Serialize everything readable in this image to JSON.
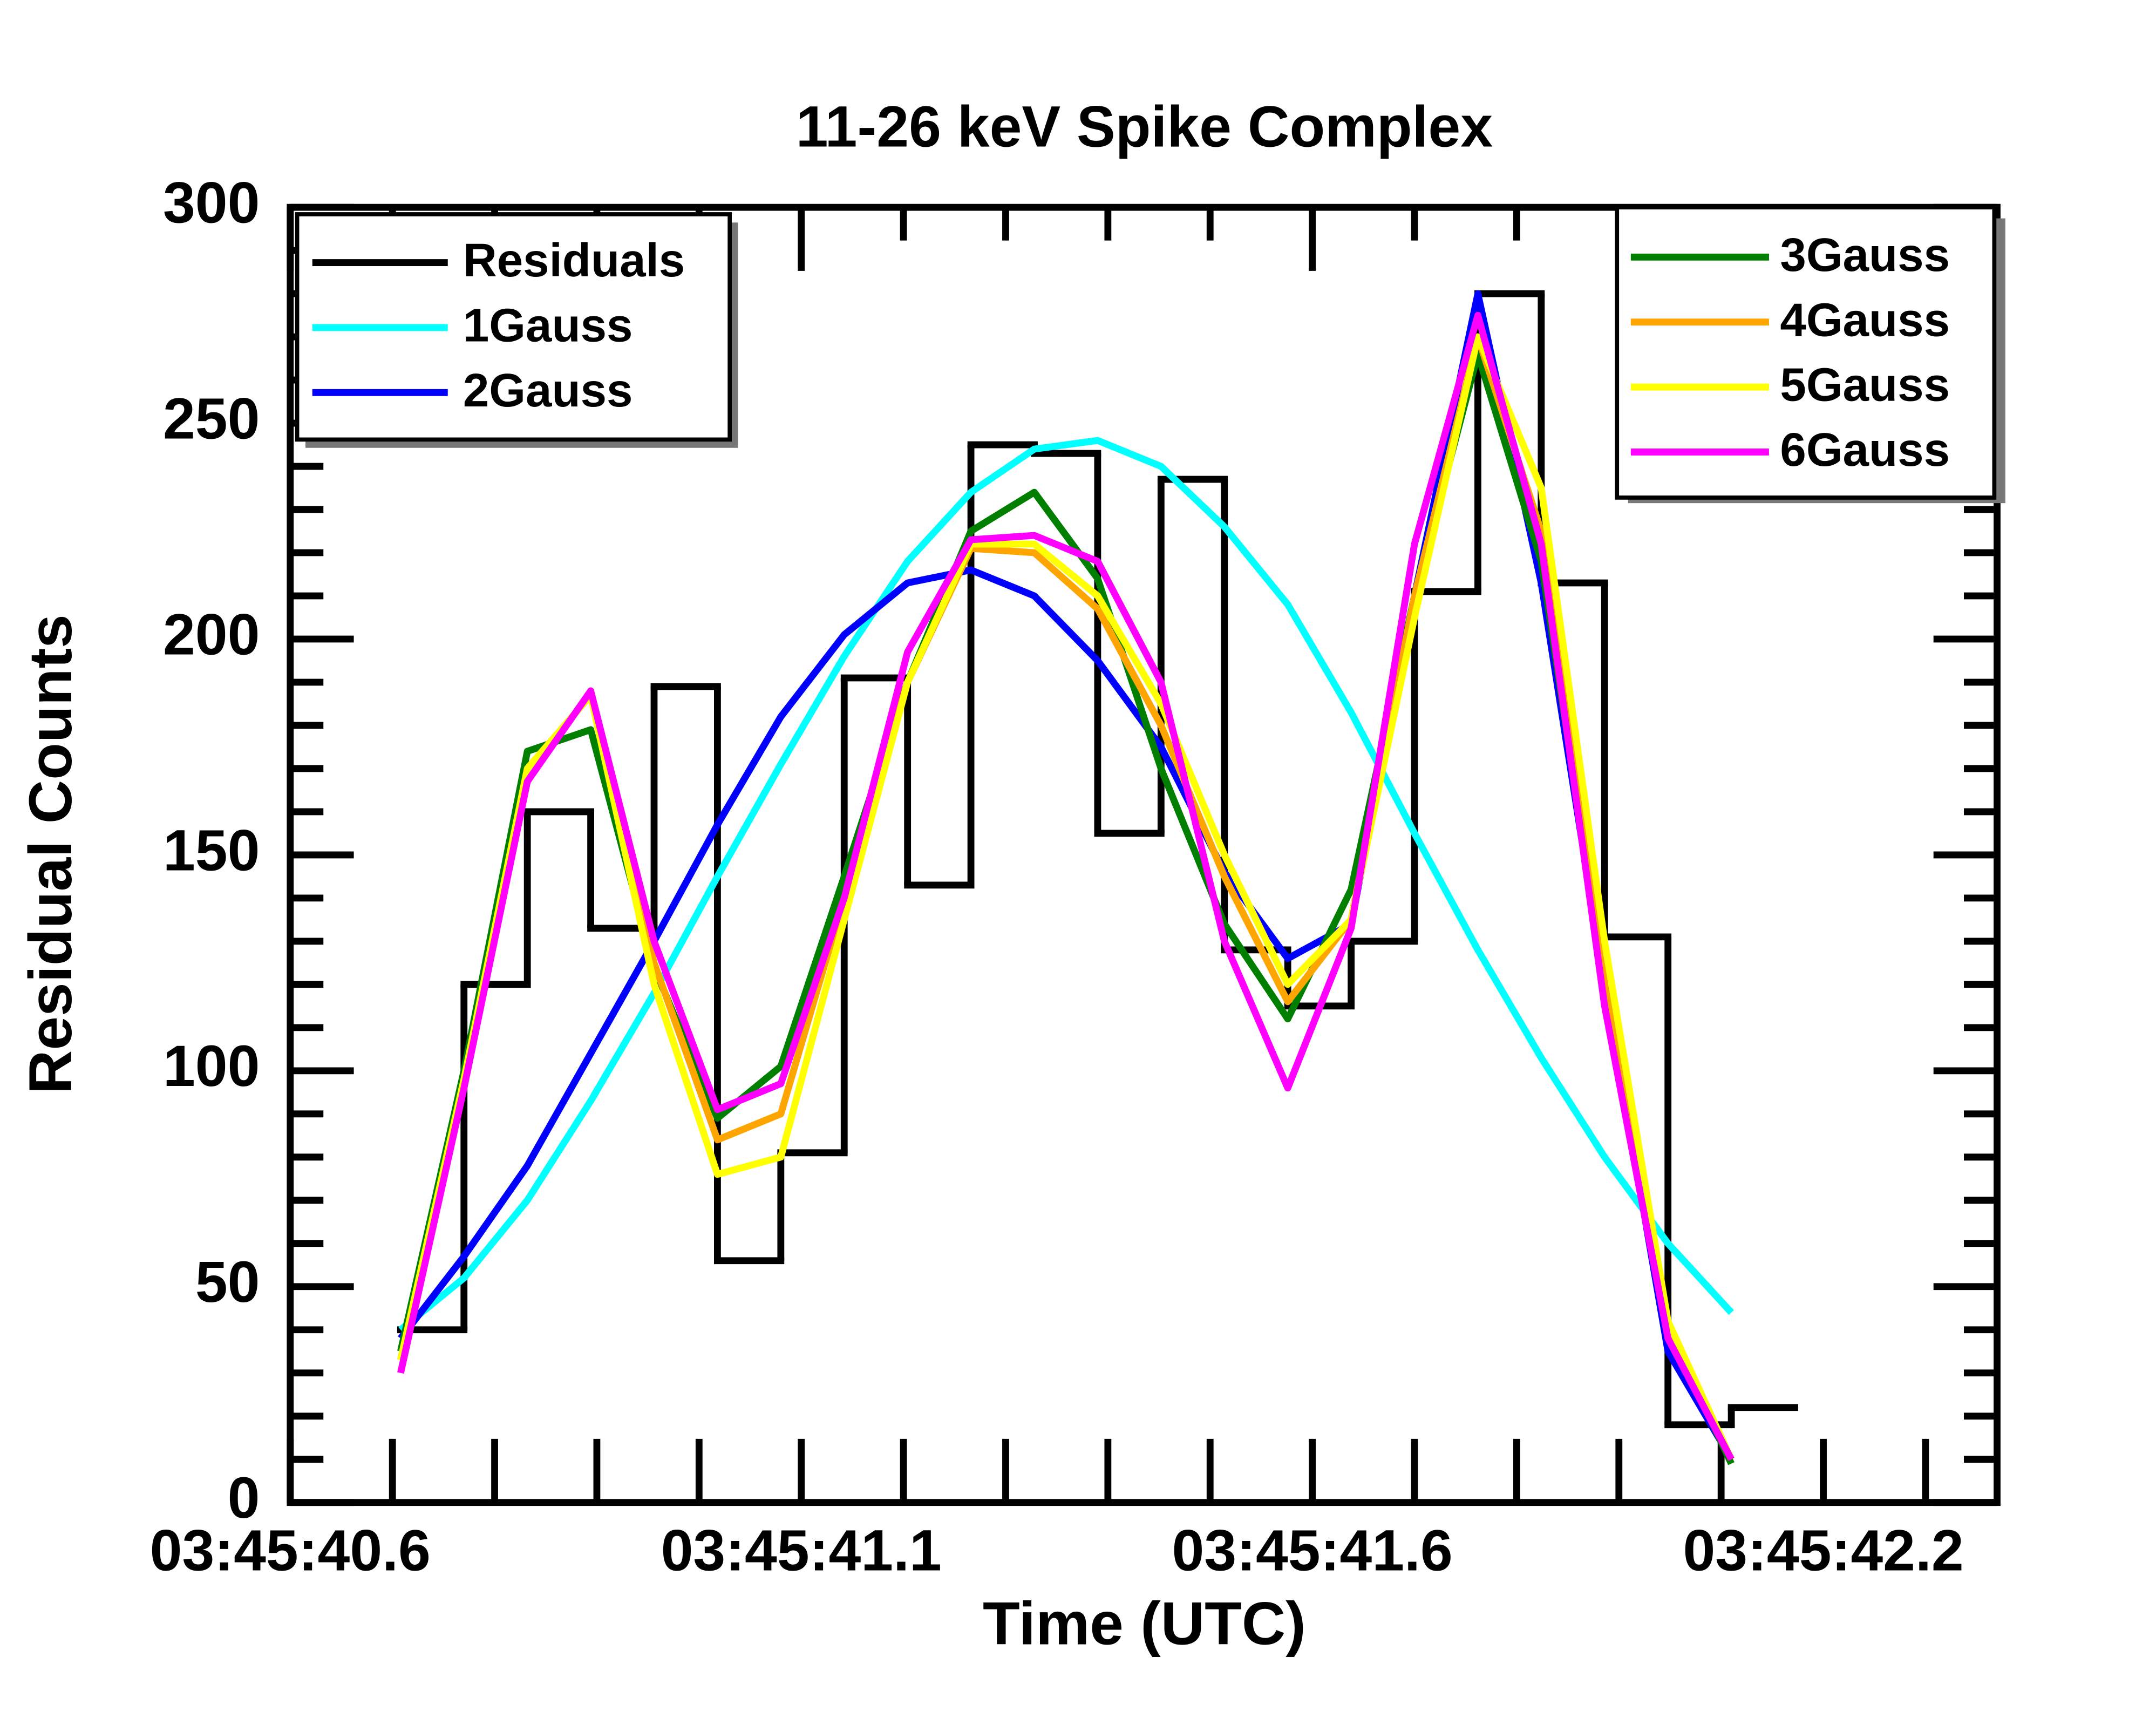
{
  "chart_data": {
    "type": "line",
    "title": "11-26 keV Spike Complex",
    "x_label": "Time (UTC)",
    "y_label": "Residual Counts",
    "xlim": [
      40.65,
      42.32
    ],
    "ylim": [
      0,
      300
    ],
    "xticks": [
      {
        "value": 40.65,
        "label": "03:45:40.6"
      },
      {
        "value": 41.15,
        "label": "03:45:41.1"
      },
      {
        "value": 41.65,
        "label": "03:45:41.6"
      },
      {
        "value": 42.15,
        "label": "03:45:42.2"
      }
    ],
    "xminorticks": [
      40.75,
      40.85,
      40.95,
      41.05,
      41.25,
      41.35,
      41.45,
      41.55,
      41.75,
      41.85,
      41.95,
      42.05,
      42.25
    ],
    "yticks": [
      0,
      50,
      100,
      150,
      200,
      250,
      300
    ],
    "yminorticks": [
      10,
      20,
      30,
      40,
      60,
      70,
      80,
      90,
      110,
      120,
      130,
      140,
      160,
      170,
      180,
      190,
      210,
      220,
      230,
      240,
      260,
      270,
      280,
      290
    ],
    "residuals": {
      "name": "Residuals",
      "color": "#000000",
      "bins": [
        40.758,
        40.82,
        40.882,
        40.944,
        41.006,
        41.068,
        41.13,
        41.192,
        41.254,
        41.316,
        41.378,
        41.44,
        41.502,
        41.564,
        41.626,
        41.688,
        41.75,
        41.812,
        41.874,
        41.936,
        41.998,
        42.06,
        42.122
      ],
      "values": [
        40,
        120,
        160,
        133,
        189,
        56,
        81,
        191,
        143,
        245,
        243,
        155,
        237,
        128,
        115,
        130,
        211,
        280,
        213,
        131,
        18,
        22
      ]
    },
    "x": [
      40.758,
      40.82,
      40.882,
      40.944,
      41.006,
      41.068,
      41.13,
      41.192,
      41.254,
      41.316,
      41.378,
      41.44,
      41.502,
      41.564,
      41.626,
      41.688,
      41.75,
      41.812,
      41.874,
      41.936,
      41.998,
      42.06
    ],
    "series": [
      {
        "name": "1Gauss",
        "color": "#00ffff",
        "values": [
          40,
          52,
          70,
          93,
          118,
          145,
          171,
          196,
          218,
          234,
          244,
          246,
          240,
          226,
          208,
          183,
          155,
          128,
          103,
          80,
          60,
          44
        ]
      },
      {
        "name": "2Gauss",
        "color": "#0000ff",
        "values": [
          38,
          57,
          78,
          104,
          130,
          157,
          182,
          201,
          213,
          216,
          210,
          195,
          175,
          146,
          126,
          134,
          210,
          280,
          213,
          120,
          35,
          10
        ]
      },
      {
        "name": "3Gauss",
        "color": "#007f00",
        "values": [
          35,
          100,
          174,
          179,
          124,
          89,
          101,
          145,
          190,
          225,
          234,
          214,
          170,
          134,
          112,
          142,
          210,
          266,
          218,
          120,
          40,
          9
        ]
      },
      {
        "name": "4Gauss",
        "color": "#ffa500",
        "values": [
          33,
          98,
          170,
          187,
          125,
          84,
          90,
          140,
          190,
          221,
          220,
          207,
          180,
          145,
          116,
          135,
          210,
          270,
          225,
          120,
          40,
          10
        ]
      },
      {
        "name": "5Gauss",
        "color": "#ffff00",
        "values": [
          33,
          98,
          170,
          187,
          120,
          76,
          80,
          135,
          190,
          222,
          222,
          210,
          185,
          150,
          120,
          135,
          205,
          270,
          235,
          130,
          42,
          10
        ]
      },
      {
        "name": "6Gauss",
        "color": "#ff00ff",
        "values": [
          30,
          96,
          167,
          188,
          130,
          91,
          97,
          140,
          197,
          223,
          224,
          218,
          190,
          130,
          96,
          133,
          222,
          275,
          222,
          115,
          38,
          10
        ]
      }
    ]
  }
}
